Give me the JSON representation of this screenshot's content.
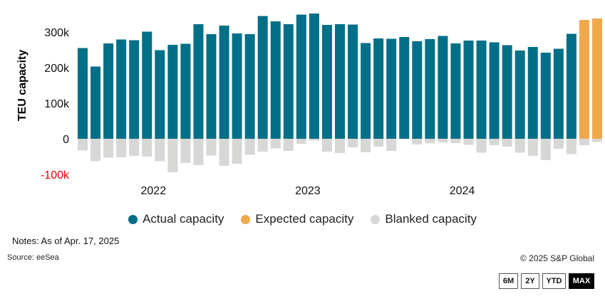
{
  "chart_data": {
    "type": "bar",
    "ylabel": "TEU capacity",
    "ylim": [
      -100000,
      350000
    ],
    "yticks": [
      {
        "value": 300000,
        "label": "300k"
      },
      {
        "value": 200000,
        "label": "200k"
      },
      {
        "value": 100000,
        "label": "100k"
      },
      {
        "value": 0,
        "label": "0"
      },
      {
        "value": -100000,
        "label": "-100k"
      }
    ],
    "xtick_labels": [
      {
        "label": "2022",
        "index": 5.5
      },
      {
        "label": "2023",
        "index": 17.5
      },
      {
        "label": "2024",
        "index": 29.5
      }
    ],
    "colors": {
      "actual": "#006f87",
      "expected": "#f0a84b",
      "blanked": "#d7d7d5",
      "negative_tick": "#e00000"
    },
    "series": [
      {
        "name": "Actual capacity",
        "values": [
          255000,
          203000,
          268000,
          279000,
          277000,
          301000,
          249000,
          264000,
          267000,
          322000,
          294000,
          318000,
          296000,
          294000,
          345000,
          330000,
          322000,
          349000,
          352000,
          320000,
          322000,
          321000,
          269000,
          282000,
          281000,
          286000,
          274000,
          280000,
          289000,
          268000,
          276000,
          276000,
          271000,
          263000,
          248000,
          258000,
          242000,
          253000,
          295000,
          null,
          null
        ]
      },
      {
        "name": "Expected capacity",
        "values": [
          null,
          null,
          null,
          null,
          null,
          null,
          null,
          null,
          null,
          null,
          null,
          null,
          null,
          null,
          null,
          null,
          null,
          null,
          null,
          null,
          null,
          null,
          null,
          null,
          null,
          null,
          null,
          null,
          null,
          null,
          null,
          null,
          null,
          null,
          null,
          null,
          null,
          null,
          null,
          334000,
          338000
        ]
      },
      {
        "name": "Blanked capacity",
        "values": [
          -33000,
          -63000,
          -53000,
          -52000,
          -48000,
          -50000,
          -63000,
          -94000,
          -68000,
          -74000,
          -47000,
          -76000,
          -70000,
          -45000,
          -36000,
          -27000,
          -34000,
          -14000,
          -5000,
          -36000,
          -40000,
          -24000,
          -38000,
          -22000,
          -34000,
          0,
          -16000,
          -13000,
          -10000,
          -12000,
          -17000,
          -39000,
          -18000,
          -22000,
          -39000,
          -48000,
          -60000,
          -28000,
          -43000,
          -18000,
          -9000
        ]
      }
    ]
  },
  "legend": {
    "actual": "Actual capacity",
    "expected": "Expected capacity",
    "blanked": "Blanked capacity"
  },
  "notes": "Notes: As of Apr. 17, 2025",
  "source": "Source: eeSea",
  "copyright": "© 2025 S&P Global",
  "range_buttons": {
    "six_month": "6M",
    "two_year": "2Y",
    "ytd": "YTD",
    "max": "MAX"
  }
}
